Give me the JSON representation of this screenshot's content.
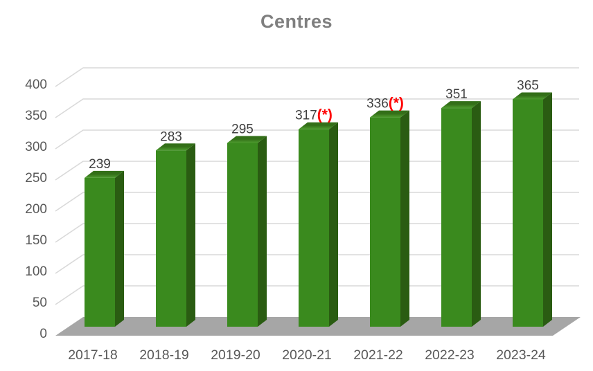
{
  "title": "Centres",
  "colors": {
    "bar_front": "#3A8A1E",
    "bar_top_light": "#4E9C2F",
    "bar_top_dark": "#336F18",
    "bar_side": "#2A5C12",
    "floor": "#A6A6A6",
    "gridline": "#D9D9D9",
    "axis_text": "#595959",
    "value_text": "#404040",
    "title_text": "#7F7F7F",
    "flag_text": "#FF0000",
    "background": "#FFFFFF"
  },
  "chart_data": {
    "type": "bar",
    "style": "3d-column",
    "title": "Centres",
    "categories": [
      "2017-18",
      "2018-19",
      "2019-20",
      "2020-21",
      "2021-22",
      "2022-23",
      "2023-24"
    ],
    "values": [
      239,
      283,
      295,
      317,
      336,
      351,
      365
    ],
    "value_label_suffixes": [
      "",
      "",
      "",
      "(*)",
      "(*)",
      "",
      ""
    ],
    "xlabel": "",
    "ylabel": "",
    "ylim": [
      0,
      400
    ],
    "ytick_step": 50,
    "yticks": [
      0,
      50,
      100,
      150,
      200,
      250,
      300,
      350,
      400
    ],
    "grid": true,
    "legend": false
  }
}
